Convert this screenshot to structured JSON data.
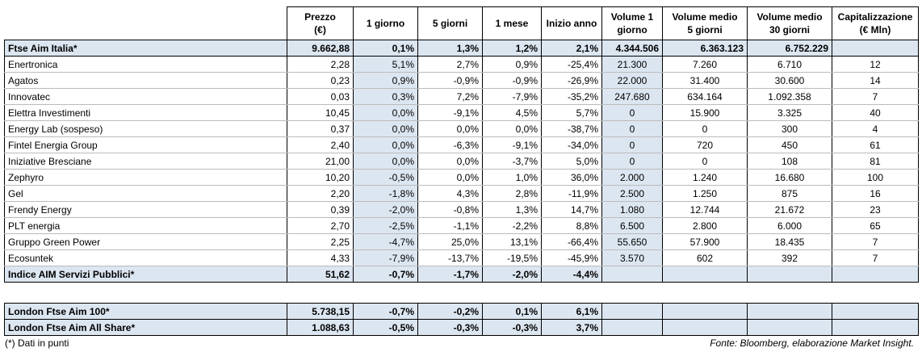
{
  "table": {
    "header": [
      [
        "Prezzo",
        "(€)"
      ],
      [
        "1 giorno"
      ],
      [
        "5 giorni"
      ],
      [
        "1 mese"
      ],
      [
        "Inizio anno"
      ],
      [
        "Volume 1",
        "giorno"
      ],
      [
        "Volume medio",
        "5 giorni"
      ],
      [
        "Volume medio",
        "30 giorni"
      ],
      [
        "Capitalizzazione",
        "(€ Mln)"
      ]
    ],
    "index_row": {
      "name": "Ftse Aim Italia*",
      "cells": [
        "9.662,88",
        "0,1%",
        "1,3%",
        "1,2%",
        "2,1%",
        "4.344.506",
        "6.363.123",
        "6.752.229"
      ]
    },
    "stocks": [
      {
        "name": "Enertronica",
        "cells": [
          "2,28",
          "5,1%",
          "2,7%",
          "0,9%",
          "-25,4%",
          "21.300",
          "7.260",
          "6.710",
          "12"
        ]
      },
      {
        "name": "Agatos",
        "cells": [
          "0,23",
          "0,9%",
          "-0,9%",
          "-0,9%",
          "-26,9%",
          "22.000",
          "31.400",
          "30.600",
          "14"
        ]
      },
      {
        "name": "Innovatec",
        "cells": [
          "0,03",
          "0,3%",
          "7,2%",
          "-7,9%",
          "-35,2%",
          "247.680",
          "634.164",
          "1.092.358",
          "7"
        ]
      },
      {
        "name": "Elettra Investimenti",
        "cells": [
          "10,45",
          "0,0%",
          "-9,1%",
          "4,5%",
          "5,7%",
          "0",
          "15.900",
          "3.325",
          "40"
        ]
      },
      {
        "name": "Energy Lab (sospeso)",
        "cells": [
          "0,37",
          "0,0%",
          "0,0%",
          "0,0%",
          "-38,7%",
          "0",
          "0",
          "300",
          "4"
        ]
      },
      {
        "name": "Fintel Energia Group",
        "cells": [
          "2,40",
          "0,0%",
          "-6,3%",
          "-9,1%",
          "-34,0%",
          "0",
          "720",
          "450",
          "61"
        ]
      },
      {
        "name": "Iniziative Bresciane",
        "cells": [
          "21,00",
          "0,0%",
          "0,0%",
          "-3,7%",
          "5,0%",
          "0",
          "0",
          "108",
          "81"
        ]
      },
      {
        "name": "Zephyro",
        "cells": [
          "10,20",
          "-0,5%",
          "0,0%",
          "1,0%",
          "36,0%",
          "2.000",
          "1.240",
          "16.680",
          "100"
        ]
      },
      {
        "name": "Gel",
        "cells": [
          "2,20",
          "-1,8%",
          "4,3%",
          "2,8%",
          "-11,9%",
          "2.500",
          "1.250",
          "875",
          "16"
        ]
      },
      {
        "name": "Frendy Energy",
        "cells": [
          "0,39",
          "-2,0%",
          "-0,8%",
          "1,3%",
          "14,7%",
          "1.080",
          "12.744",
          "21.672",
          "23"
        ]
      },
      {
        "name": "PLT energia",
        "cells": [
          "2,70",
          "-2,5%",
          "-1,1%",
          "-2,2%",
          "8,8%",
          "6.500",
          "2.800",
          "6.000",
          "65"
        ]
      },
      {
        "name": "Gruppo Green Power",
        "cells": [
          "2,25",
          "-4,7%",
          "25,0%",
          "13,1%",
          "-66,4%",
          "55.650",
          "57.900",
          "18.435",
          "7"
        ]
      },
      {
        "name": "Ecosuntek",
        "cells": [
          "4,33",
          "-7,9%",
          "-13,7%",
          "-19,5%",
          "-45,9%",
          "3.570",
          "602",
          "392",
          "7"
        ]
      }
    ],
    "sector_row": {
      "name": "Indice AIM Servizi Pubblici*",
      "cells": [
        "51,62",
        "-0,7%",
        "-1,7%",
        "-2,0%",
        "-4,4%"
      ]
    },
    "london_rows": [
      {
        "name": "London Ftse Aim 100*",
        "cells": [
          "5.738,15",
          "-0,7%",
          "-0,2%",
          "0,1%",
          "6,1%"
        ]
      },
      {
        "name": "London Ftse Aim All Share*",
        "cells": [
          "1.088,63",
          "-0,5%",
          "-0,3%",
          "-0,3%",
          "3,7%"
        ]
      }
    ],
    "footnote": "(*) Dati in punti",
    "source": "Fonte: Bloomberg, elaborazione Market Insight."
  }
}
